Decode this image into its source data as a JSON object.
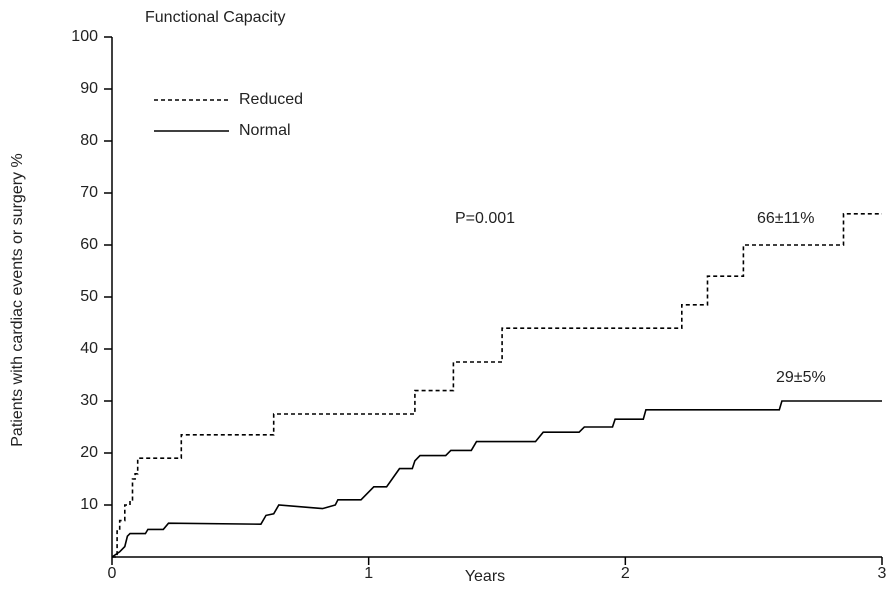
{
  "chart_data": {
    "type": "line",
    "title": "Functional Capacity",
    "ylabel": "Patients with cardiac events or surgery %",
    "xlabel": "Years",
    "xlim": [
      0,
      3
    ],
    "xticks": [
      0,
      1,
      2,
      3
    ],
    "ylim": [
      0,
      100
    ],
    "yticks": [
      10,
      20,
      30,
      40,
      50,
      60,
      70,
      80,
      90,
      100
    ],
    "grid": false,
    "legend": "upper left",
    "annotations": [
      "P=0.001",
      "66±11%",
      "29±5%"
    ],
    "series": [
      {
        "name": "Reduced",
        "color": "#000000",
        "style": "dashed",
        "x": [
          0,
          0.02,
          0.02,
          0.03,
          0.03,
          0.05,
          0.05,
          0.07,
          0.07,
          0.08,
          0.08,
          0.09,
          0.09,
          0.1,
          0.1,
          0.27,
          0.27,
          0.63,
          0.63,
          1.18,
          1.18,
          1.33,
          1.33,
          1.52,
          1.52,
          2.22,
          2.22,
          2.32,
          2.32,
          2.46,
          2.46,
          2.85,
          2.85,
          3
        ],
        "values": [
          0,
          0,
          5,
          5,
          7,
          7,
          10,
          10,
          11,
          11,
          15,
          15,
          16,
          16,
          19,
          19,
          23.5,
          23.5,
          27.5,
          27.5,
          32,
          32,
          37.5,
          37.5,
          44,
          44,
          48.5,
          48.5,
          54,
          54,
          60,
          60,
          66,
          66
        ]
      },
      {
        "name": "Normal",
        "color": "#000000",
        "style": "solid",
        "x": [
          0,
          0.03,
          0.05,
          0.06,
          0.07,
          0.13,
          0.14,
          0.2,
          0.22,
          0.58,
          0.6,
          0.63,
          0.65,
          0.82,
          0.87,
          0.88,
          0.97,
          1.02,
          1.07,
          1.12,
          1.17,
          1.18,
          1.2,
          1.3,
          1.32,
          1.4,
          1.42,
          1.65,
          1.68,
          1.82,
          1.84,
          1.95,
          1.96,
          2.07,
          2.08,
          2.6,
          2.61,
          3
        ],
        "values": [
          0,
          1,
          2,
          4,
          4.5,
          4.5,
          5.3,
          5.3,
          6.5,
          6.3,
          8,
          8.3,
          10,
          9.3,
          10,
          11,
          11,
          13.5,
          13.5,
          17,
          17,
          18.5,
          19.5,
          19.5,
          20.5,
          20.5,
          22.2,
          22.2,
          24,
          24,
          25,
          25,
          26.5,
          26.5,
          28.3,
          28.3,
          30,
          30
        ]
      }
    ]
  }
}
